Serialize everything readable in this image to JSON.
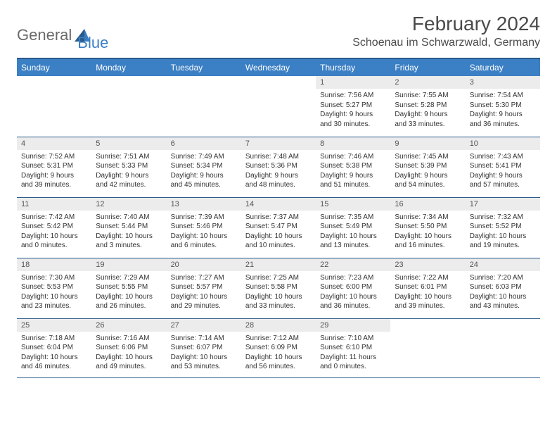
{
  "logo": {
    "text1": "General",
    "text2": "Blue"
  },
  "title": "February 2024",
  "location": "Schoenau im Schwarzwald, Germany",
  "colors": {
    "header_bg": "#3b7fc4",
    "header_border": "#2a5a8a",
    "daynum_bg": "#ececec",
    "text": "#333333",
    "logo_gray": "#6a6a6a",
    "logo_blue": "#3b7fc4"
  },
  "weekdays": [
    "Sunday",
    "Monday",
    "Tuesday",
    "Wednesday",
    "Thursday",
    "Friday",
    "Saturday"
  ],
  "weeks": [
    [
      null,
      null,
      null,
      null,
      {
        "n": "1",
        "sr": "7:56 AM",
        "ss": "5:27 PM",
        "dl": "9 hours and 30 minutes."
      },
      {
        "n": "2",
        "sr": "7:55 AM",
        "ss": "5:28 PM",
        "dl": "9 hours and 33 minutes."
      },
      {
        "n": "3",
        "sr": "7:54 AM",
        "ss": "5:30 PM",
        "dl": "9 hours and 36 minutes."
      }
    ],
    [
      {
        "n": "4",
        "sr": "7:52 AM",
        "ss": "5:31 PM",
        "dl": "9 hours and 39 minutes."
      },
      {
        "n": "5",
        "sr": "7:51 AM",
        "ss": "5:33 PM",
        "dl": "9 hours and 42 minutes."
      },
      {
        "n": "6",
        "sr": "7:49 AM",
        "ss": "5:34 PM",
        "dl": "9 hours and 45 minutes."
      },
      {
        "n": "7",
        "sr": "7:48 AM",
        "ss": "5:36 PM",
        "dl": "9 hours and 48 minutes."
      },
      {
        "n": "8",
        "sr": "7:46 AM",
        "ss": "5:38 PM",
        "dl": "9 hours and 51 minutes."
      },
      {
        "n": "9",
        "sr": "7:45 AM",
        "ss": "5:39 PM",
        "dl": "9 hours and 54 minutes."
      },
      {
        "n": "10",
        "sr": "7:43 AM",
        "ss": "5:41 PM",
        "dl": "9 hours and 57 minutes."
      }
    ],
    [
      {
        "n": "11",
        "sr": "7:42 AM",
        "ss": "5:42 PM",
        "dl": "10 hours and 0 minutes."
      },
      {
        "n": "12",
        "sr": "7:40 AM",
        "ss": "5:44 PM",
        "dl": "10 hours and 3 minutes."
      },
      {
        "n": "13",
        "sr": "7:39 AM",
        "ss": "5:46 PM",
        "dl": "10 hours and 6 minutes."
      },
      {
        "n": "14",
        "sr": "7:37 AM",
        "ss": "5:47 PM",
        "dl": "10 hours and 10 minutes."
      },
      {
        "n": "15",
        "sr": "7:35 AM",
        "ss": "5:49 PM",
        "dl": "10 hours and 13 minutes."
      },
      {
        "n": "16",
        "sr": "7:34 AM",
        "ss": "5:50 PM",
        "dl": "10 hours and 16 minutes."
      },
      {
        "n": "17",
        "sr": "7:32 AM",
        "ss": "5:52 PM",
        "dl": "10 hours and 19 minutes."
      }
    ],
    [
      {
        "n": "18",
        "sr": "7:30 AM",
        "ss": "5:53 PM",
        "dl": "10 hours and 23 minutes."
      },
      {
        "n": "19",
        "sr": "7:29 AM",
        "ss": "5:55 PM",
        "dl": "10 hours and 26 minutes."
      },
      {
        "n": "20",
        "sr": "7:27 AM",
        "ss": "5:57 PM",
        "dl": "10 hours and 29 minutes."
      },
      {
        "n": "21",
        "sr": "7:25 AM",
        "ss": "5:58 PM",
        "dl": "10 hours and 33 minutes."
      },
      {
        "n": "22",
        "sr": "7:23 AM",
        "ss": "6:00 PM",
        "dl": "10 hours and 36 minutes."
      },
      {
        "n": "23",
        "sr": "7:22 AM",
        "ss": "6:01 PM",
        "dl": "10 hours and 39 minutes."
      },
      {
        "n": "24",
        "sr": "7:20 AM",
        "ss": "6:03 PM",
        "dl": "10 hours and 43 minutes."
      }
    ],
    [
      {
        "n": "25",
        "sr": "7:18 AM",
        "ss": "6:04 PM",
        "dl": "10 hours and 46 minutes."
      },
      {
        "n": "26",
        "sr": "7:16 AM",
        "ss": "6:06 PM",
        "dl": "10 hours and 49 minutes."
      },
      {
        "n": "27",
        "sr": "7:14 AM",
        "ss": "6:07 PM",
        "dl": "10 hours and 53 minutes."
      },
      {
        "n": "28",
        "sr": "7:12 AM",
        "ss": "6:09 PM",
        "dl": "10 hours and 56 minutes."
      },
      {
        "n": "29",
        "sr": "7:10 AM",
        "ss": "6:10 PM",
        "dl": "11 hours and 0 minutes."
      },
      null,
      null
    ]
  ],
  "labels": {
    "sunrise": "Sunrise:",
    "sunset": "Sunset:",
    "daylight": "Daylight:"
  }
}
